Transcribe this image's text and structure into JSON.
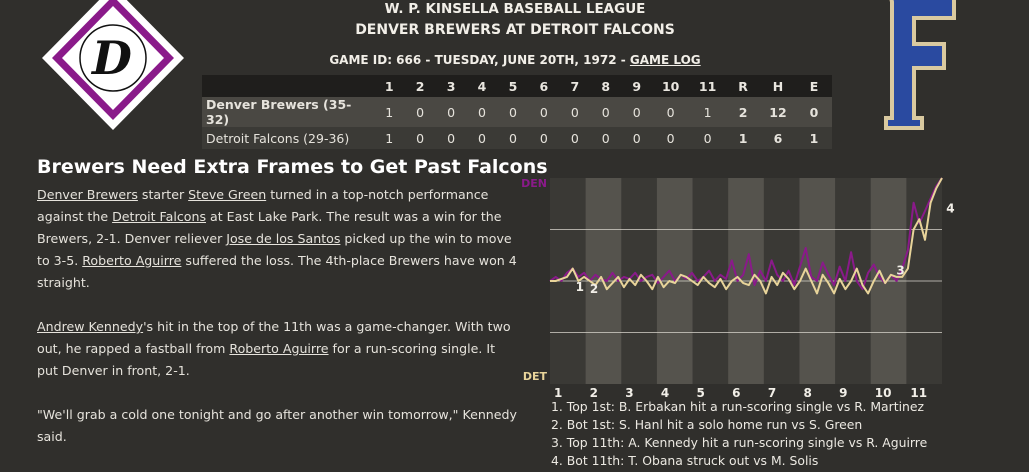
{
  "header": {
    "league": "W. P. KINSELLA BASEBALL LEAGUE",
    "matchup": "DENVER BREWERS AT DETROIT FALCONS",
    "game_info": "GAME ID: 666 - TUESDAY, JUNE 20TH, 1972 -",
    "game_log_link": "GAME LOG"
  },
  "logos": {
    "left_letter": "D",
    "right_letter": "F",
    "left_color": "#8a1a8a",
    "right_color": "#2a4aa0"
  },
  "linescore": {
    "columns": [
      "1",
      "2",
      "3",
      "4",
      "5",
      "6",
      "7",
      "8",
      "9",
      "10",
      "11",
      "R",
      "H",
      "E"
    ],
    "rows": [
      {
        "team": "Denver Brewers (35-32)",
        "cells": [
          "1",
          "0",
          "0",
          "0",
          "0",
          "0",
          "0",
          "0",
          "0",
          "0",
          "1",
          "2",
          "12",
          "0"
        ]
      },
      {
        "team": "Detroit Falcons (29-36)",
        "cells": [
          "1",
          "0",
          "0",
          "0",
          "0",
          "0",
          "0",
          "0",
          "0",
          "0",
          "0",
          "1",
          "6",
          "1"
        ]
      }
    ]
  },
  "article": {
    "headline": "Brewers Need Extra Frames to Get Past Falcons",
    "p1": {
      "link_team1": "Denver Brewers",
      "t1": " starter ",
      "link_starter": "Steve Green",
      "t2": " turned in a top-notch performance against the ",
      "link_team2": "Detroit Falcons",
      "t3": " at East Lake Park. The result was a win for the Brewers, 2-1. Denver reliever ",
      "link_reliever": "Jose de los Santos",
      "t4": " picked up the win to move to 3-5. ",
      "link_loser": "Roberto Aguirre",
      "t5": " suffered the loss. The 4th-place Brewers have won 4 straight."
    },
    "p2": {
      "link_batter": "Andrew Kennedy",
      "t1": "'s hit in the top of the 11th was a game-changer. With two out, he rapped a fastball from ",
      "link_pitcher": "Roberto Aguirre",
      "t2": " for a run-scoring single. It put Denver in front, 2-1."
    },
    "p3": "\"We'll grab a cold one tonight and go after another win tomorrow,\" Kennedy said."
  },
  "chart_data": {
    "type": "line",
    "top_label": "DEN",
    "bottom_label": "DET",
    "x_labels": [
      "1",
      "2",
      "3",
      "4",
      "5",
      "6",
      "7",
      "8",
      "9",
      "10",
      "11"
    ],
    "ylim": [
      0,
      100
    ],
    "series": [
      {
        "color": "#e8d49a",
        "values": [
          50,
          50,
          51,
          52,
          56,
          50,
          52,
          50,
          48,
          52,
          46,
          49,
          52,
          47,
          51,
          48,
          53,
          50,
          46,
          52,
          47,
          50,
          49,
          53,
          52,
          50,
          48,
          52,
          49,
          47,
          51,
          46,
          50,
          52,
          49,
          48,
          53,
          50,
          44,
          52,
          48,
          54,
          51,
          46,
          50,
          56,
          50,
          44,
          53,
          49,
          44,
          51,
          46,
          50,
          56,
          48,
          44,
          50,
          55,
          49,
          53,
          52,
          52,
          56,
          75,
          80,
          70,
          88,
          95,
          100
        ]
      },
      {
        "color": "#8a1a8a",
        "values": [
          50,
          52,
          50,
          54,
          56,
          52,
          54,
          50,
          53,
          51,
          50,
          54,
          50,
          52,
          51,
          54,
          50,
          52,
          53,
          49,
          52,
          55,
          50,
          53,
          51,
          54,
          50,
          52,
          55,
          50,
          53,
          51,
          60,
          50,
          53,
          63,
          48,
          55,
          50,
          60,
          53,
          50,
          55,
          48,
          57,
          66,
          52,
          50,
          59,
          53,
          48,
          57,
          50,
          64,
          50,
          46,
          54,
          58,
          52,
          49,
          53,
          50,
          56,
          65,
          88,
          78,
          84,
          90,
          96,
          100
        ]
      }
    ],
    "markers": [
      {
        "label": "1",
        "value": 50
      },
      {
        "label": "2",
        "value": 49
      },
      {
        "label": "3",
        "value": 58
      },
      {
        "label": "4",
        "value": 88
      }
    ],
    "notes": [
      "1. Top 1st: B. Erbakan hit a run-scoring single vs R. Martinez",
      "2. Bot 1st: S. Hanl hit a solo home run vs S. Green",
      "3. Top 11th: A. Kennedy hit a run-scoring single vs R. Aguirre",
      "4. Bot 11th: T. Obana struck out vs M. Solis"
    ]
  }
}
